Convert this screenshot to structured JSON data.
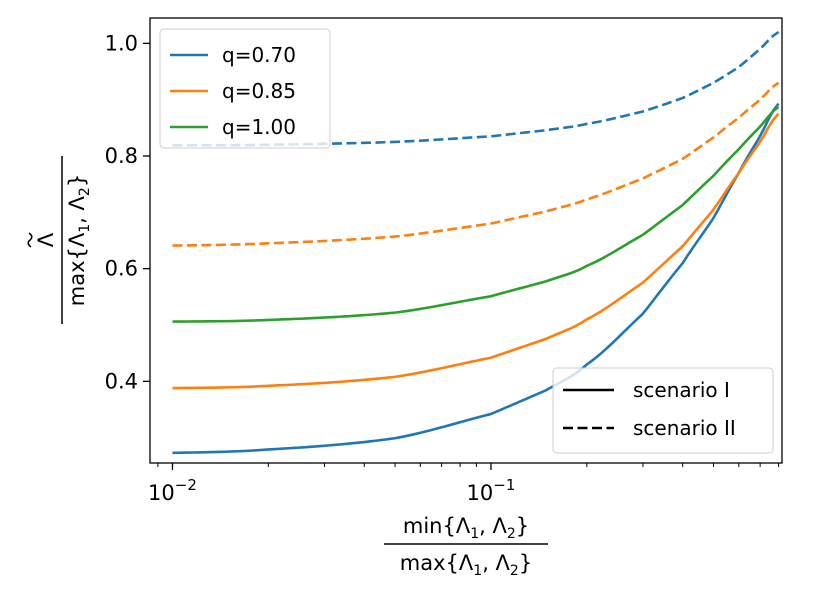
{
  "chart_data": {
    "type": "line",
    "x_scale": "log",
    "xlim": [
      0.0085,
      0.82
    ],
    "ylim": [
      0.255,
      1.045
    ],
    "grid": false,
    "x_ticks": [
      {
        "value": 0.01,
        "base": "10",
        "exp": "−2"
      },
      {
        "value": 0.1,
        "base": "10",
        "exp": "−1"
      }
    ],
    "y_ticks": [
      {
        "value": 0.4,
        "label": "0.4"
      },
      {
        "value": 0.6,
        "label": "0.6"
      },
      {
        "value": 0.8,
        "label": "0.8"
      },
      {
        "value": 1.0,
        "label": "1.0"
      }
    ],
    "xlabel": {
      "numerator": "min{Λ1, Λ2}",
      "denominator": "max{Λ1, Λ2}"
    },
    "ylabel": {
      "numerator": "Λ̃",
      "denominator": "max{Λ1, Λ2}"
    },
    "x": [
      0.01,
      0.02,
      0.05,
      0.1,
      0.15,
      0.2,
      0.3,
      0.4,
      0.5,
      0.6,
      0.7,
      0.8
    ],
    "series": [
      {
        "name": "q=0.70",
        "color": "#1f77b4",
        "style": "solid",
        "values": [
          0.273,
          0.279,
          0.299,
          0.342,
          0.385,
          0.43,
          0.52,
          0.61,
          0.69,
          0.77,
          0.835,
          0.893
        ]
      },
      {
        "name": "q=0.70",
        "color": "#1f77b4",
        "style": "dashed",
        "values": [
          0.819,
          0.82,
          0.825,
          0.835,
          0.846,
          0.857,
          0.879,
          0.903,
          0.93,
          0.958,
          0.99,
          1.02
        ]
      },
      {
        "name": "q=0.85",
        "color": "#ff7f0e",
        "style": "solid",
        "values": [
          0.388,
          0.392,
          0.408,
          0.442,
          0.476,
          0.51,
          0.575,
          0.64,
          0.705,
          0.77,
          0.825,
          0.875
        ]
      },
      {
        "name": "q=0.85",
        "color": "#ff7f0e",
        "style": "dashed",
        "values": [
          0.641,
          0.645,
          0.657,
          0.68,
          0.702,
          0.723,
          0.76,
          0.795,
          0.833,
          0.868,
          0.9,
          0.93
        ]
      },
      {
        "name": "q=1.00",
        "color": "#2ca02c",
        "style": "solid",
        "values": [
          0.506,
          0.509,
          0.522,
          0.551,
          0.578,
          0.605,
          0.66,
          0.713,
          0.765,
          0.812,
          0.852,
          0.887
        ]
      }
    ],
    "legend_q": {
      "position": "top-left",
      "entries": [
        {
          "label": "q=0.70",
          "color": "#1f77b4"
        },
        {
          "label": "q=0.85",
          "color": "#ff7f0e"
        },
        {
          "label": "q=1.00",
          "color": "#2ca02c"
        }
      ]
    },
    "legend_scenario": {
      "position": "bottom-right",
      "entries": [
        {
          "label": "scenario I",
          "style": "solid"
        },
        {
          "label": "scenario II",
          "style": "dashed"
        }
      ]
    }
  }
}
